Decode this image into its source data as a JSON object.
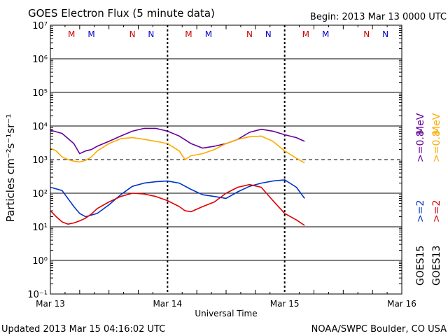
{
  "chart_data": {
    "type": "line",
    "title": "GOES Electron Flux (5 minute data)",
    "begin_label": "Begin: 2013 Mar 13 0000 UTC",
    "xlabel": "Universal Time",
    "ylabel": "Particles cm⁻²s⁻¹sr⁻¹",
    "x_ticks": [
      "Mar 13",
      "Mar 14",
      "Mar 15",
      "Mar 16"
    ],
    "xlim_days": [
      0,
      3
    ],
    "y_scale": "log",
    "ylim_exp": [
      -1,
      7
    ],
    "y_ticks": [
      "10⁷",
      "10⁶",
      "10⁵",
      "10⁴",
      "10³",
      "10²",
      "10¹",
      "10⁰",
      "10⁻¹"
    ],
    "threshold_exp": 3,
    "markers": [
      {
        "label": "M",
        "day": 0.18,
        "color": "#cc0000"
      },
      {
        "label": "M",
        "day": 0.35,
        "color": "#0000cc"
      },
      {
        "label": "N",
        "day": 0.7,
        "color": "#cc0000"
      },
      {
        "label": "N",
        "day": 0.86,
        "color": "#0000cc"
      },
      {
        "label": "M",
        "day": 1.18,
        "color": "#cc0000"
      },
      {
        "label": "M",
        "day": 1.35,
        "color": "#0000cc"
      },
      {
        "label": "N",
        "day": 1.7,
        "color": "#cc0000"
      },
      {
        "label": "N",
        "day": 1.86,
        "color": "#0000cc"
      },
      {
        "label": "M",
        "day": 2.18,
        "color": "#cc0000"
      },
      {
        "label": "M",
        "day": 2.35,
        "color": "#0000cc"
      },
      {
        "label": "N",
        "day": 2.7,
        "color": "#cc0000"
      },
      {
        "label": "N",
        "day": 2.86,
        "color": "#0000cc"
      }
    ],
    "series": [
      {
        "name": ">=0.8 MeV",
        "satellite": "GOES15",
        "color": "#660099",
        "x": [
          0.0,
          0.1,
          0.2,
          0.25,
          0.3,
          0.35,
          0.4,
          0.5,
          0.6,
          0.7,
          0.8,
          0.9,
          1.0,
          1.1,
          1.2,
          1.3,
          1.4,
          1.5,
          1.6,
          1.7,
          1.8,
          1.9,
          2.0,
          2.1,
          2.17
        ],
        "y": [
          7500,
          6000,
          3000,
          1500,
          1800,
          2000,
          2500,
          3500,
          5000,
          7000,
          8500,
          8500,
          7000,
          5000,
          3000,
          2200,
          2500,
          3000,
          4000,
          6500,
          8000,
          7000,
          5500,
          4500,
          3500
        ]
      },
      {
        "name": ">=0.8 MeV",
        "satellite": "GOES13",
        "color": "#ffaa00",
        "x": [
          0.0,
          0.05,
          0.1,
          0.15,
          0.2,
          0.25,
          0.3,
          0.35,
          0.4,
          0.5,
          0.6,
          0.7,
          0.8,
          0.9,
          1.0,
          1.1,
          1.15,
          1.2,
          1.3,
          1.4,
          1.5,
          1.6,
          1.7,
          1.8,
          1.9,
          2.0,
          2.1,
          2.17
        ],
        "y": [
          2200,
          1800,
          1200,
          1000,
          900,
          850,
          950,
          1200,
          1800,
          3000,
          4200,
          4500,
          4000,
          3500,
          3000,
          1800,
          1000,
          1300,
          1500,
          2000,
          3000,
          4000,
          4800,
          5000,
          3500,
          1800,
          1100,
          800
        ]
      },
      {
        "name": ">=2 MeV",
        "satellite": "GOES15",
        "color": "#0033cc",
        "x": [
          0.0,
          0.1,
          0.2,
          0.25,
          0.3,
          0.4,
          0.5,
          0.6,
          0.7,
          0.8,
          0.9,
          1.0,
          1.1,
          1.2,
          1.3,
          1.4,
          1.5,
          1.6,
          1.7,
          1.8,
          1.9,
          2.0,
          2.1,
          2.17
        ],
        "y": [
          150,
          120,
          40,
          25,
          20,
          25,
          45,
          90,
          160,
          200,
          220,
          230,
          200,
          130,
          90,
          80,
          70,
          110,
          160,
          200,
          230,
          250,
          150,
          70
        ]
      },
      {
        "name": ">=2 MeV",
        "satellite": "GOES13",
        "color": "#dd0000",
        "x": [
          0.0,
          0.05,
          0.1,
          0.15,
          0.2,
          0.25,
          0.3,
          0.35,
          0.4,
          0.5,
          0.6,
          0.7,
          0.8,
          0.9,
          1.0,
          1.1,
          1.15,
          1.2,
          1.3,
          1.4,
          1.5,
          1.6,
          1.7,
          1.8,
          1.9,
          2.0,
          2.1,
          2.17
        ],
        "y": [
          30,
          20,
          14,
          12,
          13,
          15,
          18,
          24,
          35,
          55,
          80,
          100,
          95,
          80,
          60,
          40,
          30,
          28,
          40,
          55,
          100,
          150,
          180,
          150,
          60,
          25,
          16,
          11
        ]
      }
    ],
    "right_labels": [
      {
        "text": "GOES15",
        "color": "#000000",
        "col": 0,
        "pos": "bottom"
      },
      {
        "text": ">=2",
        "color": "#0033cc",
        "col": 0,
        "pos": "mid"
      },
      {
        "text": ">=0.8",
        "color": "#660099",
        "col": 0,
        "pos": "top"
      },
      {
        "text": "MeV",
        "color": "#660099",
        "col": 0,
        "pos": "topunit"
      },
      {
        "text": "GOES13",
        "color": "#000000",
        "col": 1,
        "pos": "bottom"
      },
      {
        "text": ">=2",
        "color": "#dd0000",
        "col": 1,
        "pos": "mid"
      },
      {
        "text": ">=0.8",
        "color": "#ffaa00",
        "col": 1,
        "pos": "top"
      },
      {
        "text": "MeV",
        "color": "#ffaa00",
        "col": 1,
        "pos": "topunit"
      }
    ],
    "grid": true
  },
  "footer": {
    "updated": "Updated 2013 Mar 15 04:16:02 UTC",
    "source": "NOAA/SWPC Boulder, CO USA"
  }
}
